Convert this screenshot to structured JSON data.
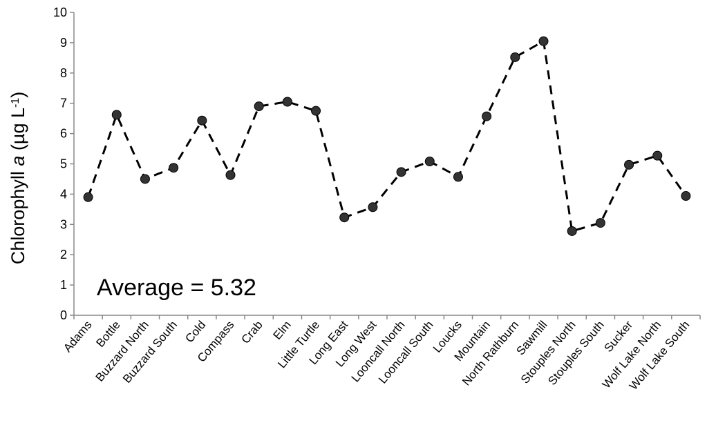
{
  "chart_data": {
    "type": "line",
    "title": "",
    "xlabel": "",
    "ylabel": {
      "prefix": "Chlorophyll ",
      "italic": "a",
      "units_open": " (µg L",
      "superscript": "-1",
      "units_close": ")"
    },
    "ylim": [
      0,
      10
    ],
    "yticks": [
      "0",
      "1",
      "2",
      "3",
      "4",
      "5",
      "6",
      "7",
      "8",
      "9",
      "10"
    ],
    "grid": false,
    "legend": "none",
    "line_style": "dashed",
    "marker": "circle",
    "color": "#000000",
    "categories": [
      "Adams",
      "Bottle",
      "Buzzard North",
      "Buzzard South",
      "Cold",
      "Compass",
      "Crab",
      "Elm",
      "Little Turtle",
      "Long East",
      "Long West",
      "Looncall North",
      "Looncall South",
      "Loucks",
      "Mountain",
      "North Rathburn",
      "Sawmill",
      "Stouples North",
      "Stouples South",
      "Sucker",
      "Wolf Lake North",
      "Wolf Lake South"
    ],
    "values": [
      3.9,
      6.62,
      4.5,
      4.87,
      6.43,
      4.63,
      6.9,
      7.05,
      6.75,
      3.23,
      3.57,
      4.73,
      5.08,
      4.57,
      6.57,
      8.52,
      9.05,
      2.78,
      3.05,
      4.97,
      5.27,
      3.94
    ],
    "annotations": [
      {
        "text": "Average = 5.32"
      }
    ]
  }
}
